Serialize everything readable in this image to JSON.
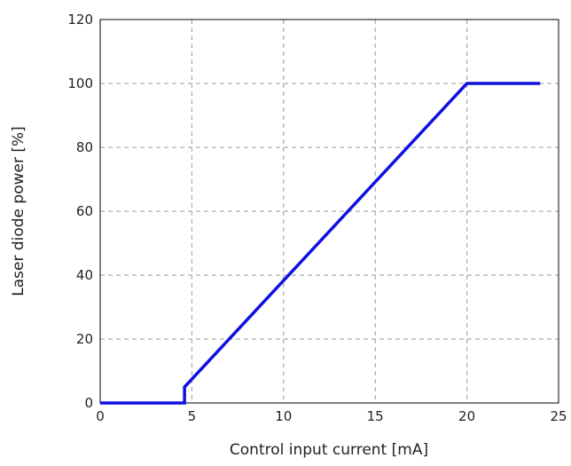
{
  "chart_data": {
    "type": "line",
    "title": "",
    "xlabel": "Control input current [mA]",
    "ylabel": "Laser diode power [%]",
    "xlim": [
      0,
      25
    ],
    "ylim": [
      0,
      120
    ],
    "xticks": [
      0,
      5,
      10,
      15,
      20,
      25
    ],
    "yticks": [
      0,
      20,
      40,
      60,
      80,
      100,
      120
    ],
    "grid": true,
    "grid_style": "dashed",
    "legend": "none",
    "series": [
      {
        "color": "#1010e0",
        "x": [
          0,
          4.6,
          4.6,
          20,
          24
        ],
        "y": [
          0,
          0,
          5,
          100,
          100
        ]
      }
    ]
  }
}
